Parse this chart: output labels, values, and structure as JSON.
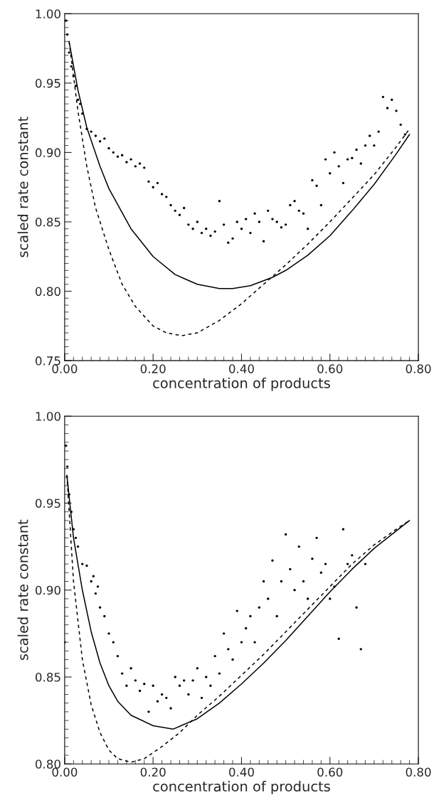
{
  "chart_data": [
    {
      "type": "scatter",
      "xlabel": "concentration of products",
      "ylabel": "scaled rate constant",
      "xlim": [
        0,
        0.8
      ],
      "ylim": [
        0.75,
        1.0
      ],
      "xticks": [
        {
          "value": 0,
          "label": "0.00"
        },
        {
          "value": 0.2,
          "label": "0.20"
        },
        {
          "value": 0.4,
          "label": "0.40"
        },
        {
          "value": 0.6,
          "label": "0.60"
        },
        {
          "value": 0.8,
          "label": "0.80"
        }
      ],
      "yticks": [
        0.75,
        {
          "value": 0.8,
          "label": "0.80"
        },
        0.85,
        {
          "value": 0.9,
          "label": "0.90"
        },
        0.95,
        {
          "value": 1.0,
          "label": "1.00"
        }
      ],
      "grid": false,
      "legend": false,
      "series": [
        {
          "type": "scatter",
          "color": "#000000",
          "marker": "circle",
          "x": [
            0.003,
            0.006,
            0.01,
            0.015,
            0.02,
            0.025,
            0.03,
            0.035,
            0.04,
            0.05,
            0.06,
            0.07,
            0.08,
            0.09,
            0.1,
            0.11,
            0.12,
            0.13,
            0.14,
            0.15,
            0.16,
            0.17,
            0.18,
            0.19,
            0.2,
            0.21,
            0.22,
            0.23,
            0.24,
            0.25,
            0.26,
            0.27,
            0.28,
            0.29,
            0.3,
            0.31,
            0.32,
            0.33,
            0.34,
            0.35,
            0.36,
            0.37,
            0.38,
            0.39,
            0.4,
            0.41,
            0.42,
            0.43,
            0.44,
            0.45,
            0.46,
            0.47,
            0.48,
            0.49,
            0.5,
            0.51,
            0.52,
            0.53,
            0.54,
            0.55,
            0.56,
            0.57,
            0.58,
            0.59,
            0.6,
            0.61,
            0.62,
            0.63,
            0.64,
            0.65,
            0.66,
            0.67,
            0.68,
            0.69,
            0.7,
            0.71,
            0.72,
            0.73,
            0.74,
            0.75,
            0.76,
            0.77
          ],
          "values": [
            0.995,
            0.985,
            0.972,
            0.962,
            0.955,
            0.948,
            0.938,
            0.935,
            0.928,
            0.917,
            0.915,
            0.912,
            0.908,
            0.91,
            0.903,
            0.9,
            0.897,
            0.898,
            0.893,
            0.895,
            0.89,
            0.892,
            0.889,
            0.879,
            0.875,
            0.878,
            0.87,
            0.868,
            0.862,
            0.858,
            0.855,
            0.86,
            0.848,
            0.845,
            0.85,
            0.842,
            0.845,
            0.84,
            0.843,
            0.865,
            0.848,
            0.835,
            0.838,
            0.85,
            0.845,
            0.852,
            0.842,
            0.856,
            0.85,
            0.836,
            0.858,
            0.852,
            0.85,
            0.846,
            0.848,
            0.862,
            0.865,
            0.858,
            0.856,
            0.845,
            0.88,
            0.876,
            0.862,
            0.895,
            0.885,
            0.9,
            0.89,
            0.878,
            0.895,
            0.896,
            0.902,
            0.892,
            0.905,
            0.912,
            0.905,
            0.915,
            0.94,
            0.932,
            0.938,
            0.93,
            0.92,
            0.913
          ]
        },
        {
          "type": "line",
          "color": "#000000",
          "line_style": "solid",
          "x": [
            0.01,
            0.03,
            0.05,
            0.08,
            0.1,
            0.15,
            0.2,
            0.25,
            0.3,
            0.35,
            0.38,
            0.42,
            0.47,
            0.5,
            0.55,
            0.6,
            0.65,
            0.7,
            0.75,
            0.78
          ],
          "values": [
            0.98,
            0.945,
            0.918,
            0.89,
            0.874,
            0.845,
            0.825,
            0.812,
            0.805,
            0.802,
            0.802,
            0.804,
            0.81,
            0.815,
            0.826,
            0.84,
            0.858,
            0.877,
            0.899,
            0.913
          ]
        },
        {
          "type": "line",
          "color": "#000000",
          "line_style": "dashed",
          "x": [
            0.01,
            0.03,
            0.05,
            0.07,
            0.1,
            0.13,
            0.16,
            0.2,
            0.23,
            0.265,
            0.3,
            0.35,
            0.4,
            0.45,
            0.5,
            0.55,
            0.6,
            0.65,
            0.7,
            0.75,
            0.78
          ],
          "values": [
            0.98,
            0.93,
            0.89,
            0.86,
            0.83,
            0.805,
            0.789,
            0.775,
            0.77,
            0.768,
            0.77,
            0.779,
            0.791,
            0.805,
            0.819,
            0.834,
            0.85,
            0.867,
            0.884,
            0.904,
            0.917
          ]
        }
      ]
    },
    {
      "type": "scatter",
      "xlabel": "concentration of products",
      "ylabel": "scaled rate constant",
      "xlim": [
        0,
        0.8
      ],
      "ylim": [
        0.8,
        1.0
      ],
      "xticks": [
        {
          "value": 0,
          "label": "0.00"
        },
        {
          "value": 0.2,
          "label": "0.20"
        },
        {
          "value": 0.4,
          "label": "0.40"
        },
        {
          "value": 0.6,
          "label": "0.60"
        },
        {
          "value": 0.8,
          "label": "0.80"
        }
      ],
      "yticks": [
        {
          "value": 0.8,
          "label": "0.80"
        },
        0.85,
        {
          "value": 0.9,
          "label": "0.90"
        },
        0.95,
        {
          "value": 1.0,
          "label": "1.00"
        }
      ],
      "grid": false,
      "legend": false,
      "series": [
        {
          "type": "scatter",
          "color": "#000000",
          "marker": "circle",
          "x": [
            0.0,
            0.003,
            0.006,
            0.01,
            0.015,
            0.02,
            0.025,
            0.03,
            0.04,
            0.05,
            0.06,
            0.065,
            0.07,
            0.075,
            0.08,
            0.09,
            0.1,
            0.11,
            0.12,
            0.13,
            0.14,
            0.15,
            0.16,
            0.17,
            0.18,
            0.19,
            0.2,
            0.21,
            0.22,
            0.23,
            0.24,
            0.25,
            0.26,
            0.27,
            0.28,
            0.29,
            0.3,
            0.31,
            0.32,
            0.33,
            0.34,
            0.35,
            0.36,
            0.37,
            0.38,
            0.39,
            0.4,
            0.41,
            0.42,
            0.43,
            0.44,
            0.45,
            0.46,
            0.47,
            0.48,
            0.49,
            0.5,
            0.51,
            0.52,
            0.53,
            0.54,
            0.55,
            0.56,
            0.57,
            0.58,
            0.59,
            0.6,
            0.61,
            0.62,
            0.63,
            0.64,
            0.65,
            0.66,
            0.67,
            0.68
          ],
          "values": [
            0.87,
            0.983,
            0.971,
            0.955,
            0.945,
            0.935,
            0.93,
            0.925,
            0.915,
            0.914,
            0.905,
            0.908,
            0.898,
            0.902,
            0.89,
            0.885,
            0.875,
            0.87,
            0.862,
            0.852,
            0.845,
            0.855,
            0.848,
            0.842,
            0.846,
            0.83,
            0.845,
            0.836,
            0.84,
            0.838,
            0.832,
            0.85,
            0.845,
            0.848,
            0.84,
            0.848,
            0.855,
            0.838,
            0.85,
            0.845,
            0.862,
            0.852,
            0.875,
            0.866,
            0.86,
            0.888,
            0.87,
            0.878,
            0.885,
            0.87,
            0.89,
            0.905,
            0.895,
            0.917,
            0.885,
            0.905,
            0.932,
            0.912,
            0.9,
            0.925,
            0.905,
            0.895,
            0.918,
            0.93,
            0.91,
            0.915,
            0.895,
            0.902,
            0.872,
            0.935,
            0.915,
            0.92,
            0.89,
            0.866,
            0.915
          ]
        },
        {
          "type": "line",
          "color": "#000000",
          "line_style": "solid",
          "x": [
            0.005,
            0.02,
            0.04,
            0.06,
            0.08,
            0.1,
            0.12,
            0.15,
            0.2,
            0.245,
            0.3,
            0.35,
            0.4,
            0.45,
            0.5,
            0.55,
            0.6,
            0.65,
            0.7,
            0.75,
            0.78
          ],
          "values": [
            0.966,
            0.93,
            0.9,
            0.876,
            0.858,
            0.845,
            0.836,
            0.828,
            0.822,
            0.82,
            0.826,
            0.835,
            0.846,
            0.858,
            0.871,
            0.885,
            0.899,
            0.912,
            0.924,
            0.934,
            0.94
          ]
        },
        {
          "type": "line",
          "color": "#000000",
          "line_style": "dashed",
          "x": [
            0.005,
            0.02,
            0.04,
            0.06,
            0.08,
            0.1,
            0.12,
            0.15,
            0.18,
            0.22,
            0.26,
            0.3,
            0.35,
            0.4,
            0.45,
            0.5,
            0.55,
            0.6,
            0.65,
            0.7,
            0.75,
            0.78
          ],
          "values": [
            0.966,
            0.905,
            0.86,
            0.834,
            0.818,
            0.808,
            0.803,
            0.801,
            0.803,
            0.81,
            0.818,
            0.828,
            0.839,
            0.851,
            0.863,
            0.876,
            0.889,
            0.902,
            0.915,
            0.926,
            0.935,
            0.94
          ]
        }
      ]
    }
  ]
}
